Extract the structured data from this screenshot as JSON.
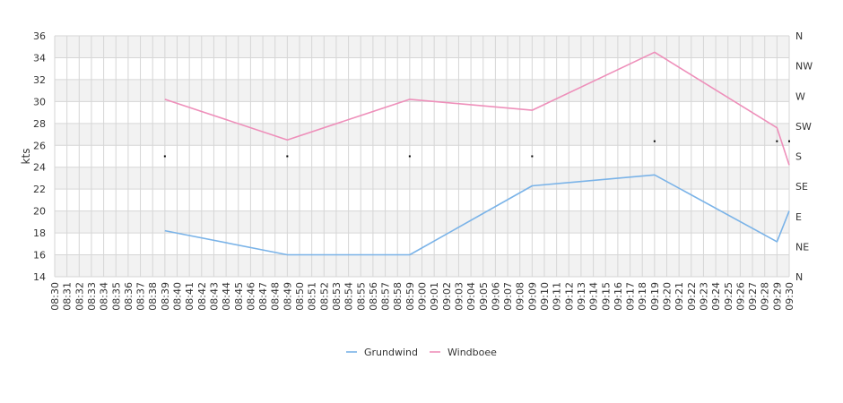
{
  "chart_data": {
    "type": "line",
    "ylabel": "kts",
    "ylim": [
      14,
      36
    ],
    "yticks": [
      "14",
      "16",
      "18",
      "20",
      "22",
      "24",
      "26",
      "28",
      "30",
      "32",
      "34",
      "36"
    ],
    "direction_labels": [
      "N",
      "NE",
      "E",
      "SE",
      "S",
      "SW",
      "W",
      "NW",
      "N"
    ],
    "x_ticks": [
      "08:30",
      "08:31",
      "08:32",
      "08:33",
      "08:34",
      "08:35",
      "08:36",
      "08:37",
      "08:38",
      "08:39",
      "08:40",
      "08:41",
      "08:42",
      "08:43",
      "08:44",
      "08:45",
      "08:46",
      "08:47",
      "08:48",
      "08:49",
      "08:50",
      "08:51",
      "08:52",
      "08:53",
      "08:54",
      "08:55",
      "08:56",
      "08:57",
      "08:58",
      "08:59",
      "09:00",
      "09:01",
      "09:02",
      "09:03",
      "09:04",
      "09:05",
      "09:06",
      "09:07",
      "09:08",
      "09:09",
      "09:10",
      "09:11",
      "09:12",
      "09:13",
      "09:14",
      "09:15",
      "09:16",
      "09:17",
      "09:18",
      "09:19",
      "09:20",
      "09:21",
      "09:22",
      "09:23",
      "09:24",
      "09:25",
      "09:26",
      "09:27",
      "09:28",
      "09:29",
      "09:30"
    ],
    "grid": true,
    "legend_position": "bottom-center",
    "series": [
      {
        "name": "Grundwind",
        "color": "#7ab3e8",
        "points": [
          {
            "x": "08:39",
            "y": 18.2
          },
          {
            "x": "08:49",
            "y": 16.0
          },
          {
            "x": "08:59",
            "y": 16.0
          },
          {
            "x": "09:09",
            "y": 22.3
          },
          {
            "x": "09:19",
            "y": 23.3
          },
          {
            "x": "09:29",
            "y": 17.2
          },
          {
            "x": "09:30",
            "y": 20.0
          }
        ]
      },
      {
        "name": "Windboee",
        "color": "#ee8fba",
        "points": [
          {
            "x": "08:39",
            "y": 30.2
          },
          {
            "x": "08:49",
            "y": 26.5
          },
          {
            "x": "08:59",
            "y": 30.2
          },
          {
            "x": "09:09",
            "y": 29.2
          },
          {
            "x": "09:19",
            "y": 34.5
          },
          {
            "x": "09:29",
            "y": 27.6
          },
          {
            "x": "09:30",
            "y": 24.2
          }
        ]
      }
    ],
    "direction_markers": {
      "color": "#000000",
      "points": [
        {
          "x": "08:39",
          "dir_deg": 180
        },
        {
          "x": "08:49",
          "dir_deg": 180
        },
        {
          "x": "08:59",
          "dir_deg": 180
        },
        {
          "x": "09:09",
          "dir_deg": 180
        },
        {
          "x": "09:19",
          "dir_deg": 202.5
        },
        {
          "x": "09:29",
          "dir_deg": 202.5
        },
        {
          "x": "09:30",
          "dir_deg": 202.5
        }
      ]
    }
  }
}
